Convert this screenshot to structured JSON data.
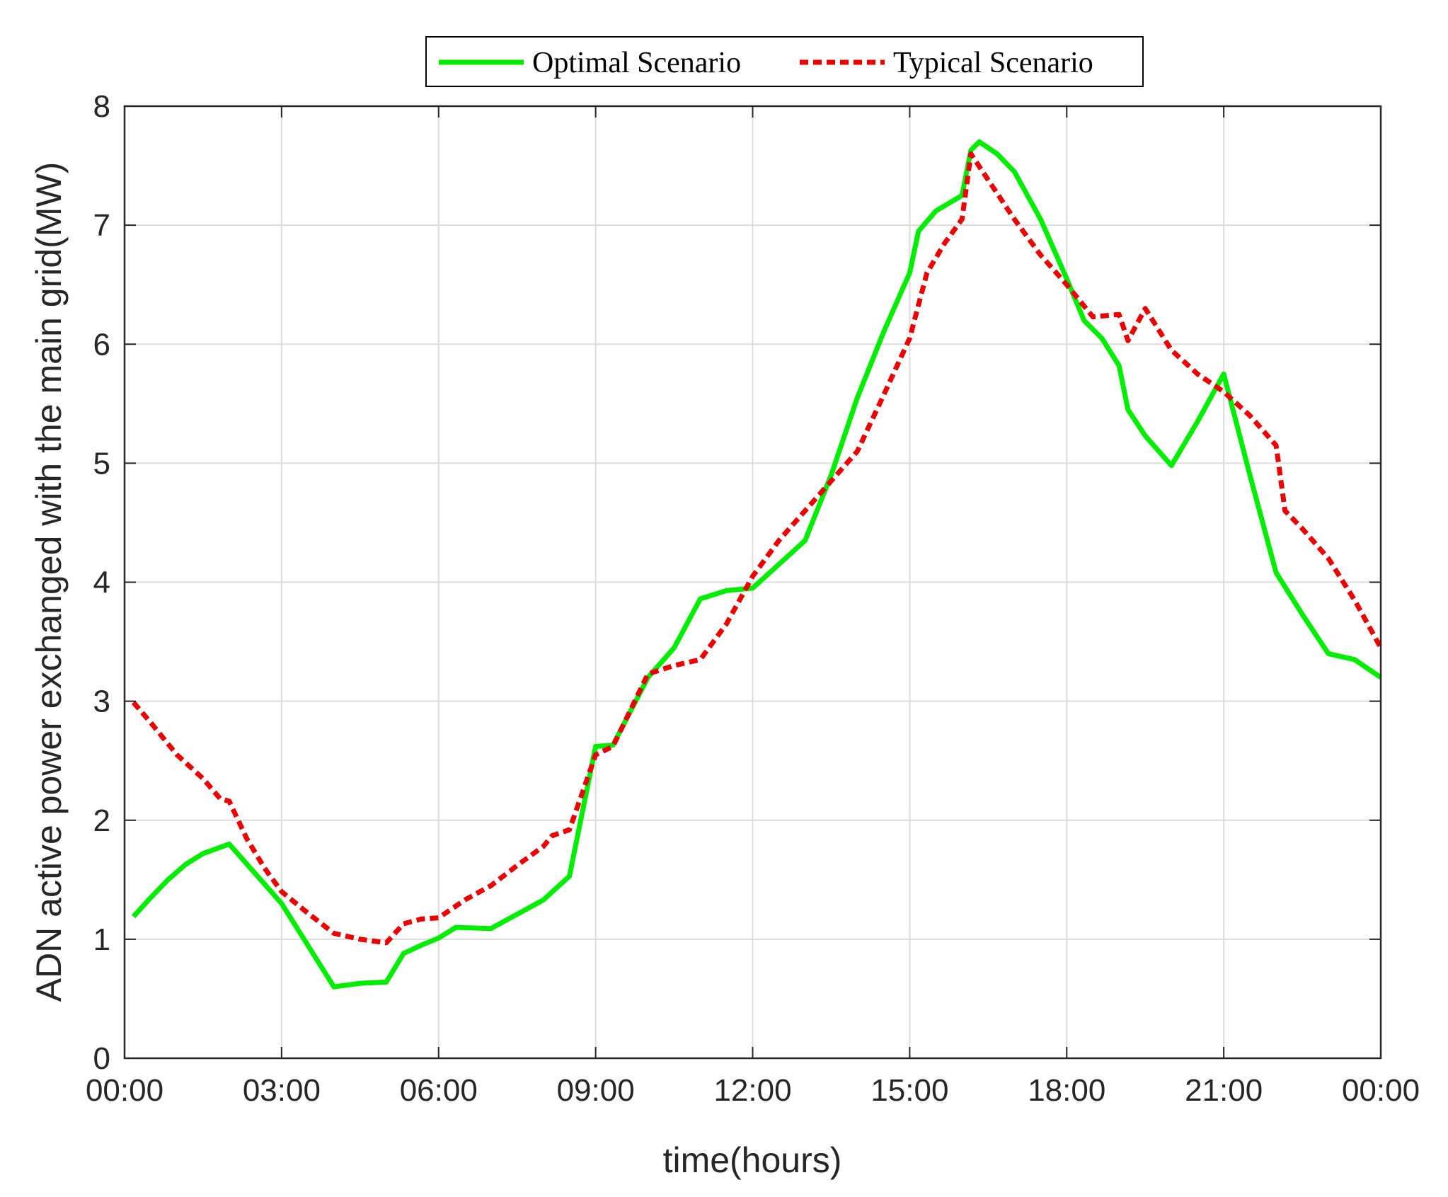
{
  "chart_data": {
    "type": "line",
    "title": "",
    "xlabel": "time(hours)",
    "ylabel": "ADN active power exchanged with the main grid(MW)",
    "xlim": [
      0,
      24
    ],
    "ylim": [
      0,
      8
    ],
    "grid": true,
    "legend_position": "top-center",
    "x_ticks": [
      {
        "value": 0,
        "label": "00:00"
      },
      {
        "value": 3,
        "label": "03:00"
      },
      {
        "value": 6,
        "label": "06:00"
      },
      {
        "value": 9,
        "label": "09:00"
      },
      {
        "value": 12,
        "label": "12:00"
      },
      {
        "value": 15,
        "label": "15:00"
      },
      {
        "value": 18,
        "label": "18:00"
      },
      {
        "value": 21,
        "label": "21:00"
      },
      {
        "value": 24,
        "label": "00:00"
      }
    ],
    "y_ticks": [
      {
        "value": 0,
        "label": "0"
      },
      {
        "value": 1,
        "label": "1"
      },
      {
        "value": 2,
        "label": "2"
      },
      {
        "value": 3,
        "label": "3"
      },
      {
        "value": 4,
        "label": "4"
      },
      {
        "value": 5,
        "label": "5"
      },
      {
        "value": 6,
        "label": "6"
      },
      {
        "value": 7,
        "label": "7"
      },
      {
        "value": 8,
        "label": "8"
      }
    ],
    "series": [
      {
        "name": "Optimal Scenario",
        "color": "#00ee00",
        "dash": "solid",
        "points": [
          [
            0.17,
            1.19
          ],
          [
            0.5,
            1.35
          ],
          [
            0.83,
            1.5
          ],
          [
            1.17,
            1.63
          ],
          [
            1.5,
            1.72
          ],
          [
            2.0,
            1.8
          ],
          [
            2.5,
            1.55
          ],
          [
            3.0,
            1.3
          ],
          [
            3.5,
            0.95
          ],
          [
            4.0,
            0.6
          ],
          [
            4.5,
            0.63
          ],
          [
            5.0,
            0.64
          ],
          [
            5.33,
            0.88
          ],
          [
            5.67,
            0.95
          ],
          [
            6.0,
            1.01
          ],
          [
            6.33,
            1.1
          ],
          [
            7.0,
            1.09
          ],
          [
            7.5,
            1.21
          ],
          [
            8.0,
            1.33
          ],
          [
            8.5,
            1.53
          ],
          [
            9.0,
            2.62
          ],
          [
            9.33,
            2.63
          ],
          [
            10.0,
            3.2
          ],
          [
            10.5,
            3.45
          ],
          [
            11.0,
            3.86
          ],
          [
            11.5,
            3.93
          ],
          [
            12.0,
            3.95
          ],
          [
            12.5,
            4.15
          ],
          [
            13.0,
            4.35
          ],
          [
            13.5,
            4.9
          ],
          [
            14.0,
            5.55
          ],
          [
            14.5,
            6.1
          ],
          [
            15.0,
            6.6
          ],
          [
            15.17,
            6.95
          ],
          [
            15.5,
            7.12
          ],
          [
            16.0,
            7.25
          ],
          [
            16.17,
            7.63
          ],
          [
            16.33,
            7.7
          ],
          [
            16.67,
            7.6
          ],
          [
            17.0,
            7.45
          ],
          [
            17.5,
            7.05
          ],
          [
            18.0,
            6.55
          ],
          [
            18.33,
            6.2
          ],
          [
            18.67,
            6.05
          ],
          [
            19.0,
            5.82
          ],
          [
            19.17,
            5.45
          ],
          [
            19.5,
            5.23
          ],
          [
            20.0,
            4.98
          ],
          [
            20.5,
            5.35
          ],
          [
            21.0,
            5.75
          ],
          [
            21.5,
            4.9
          ],
          [
            22.0,
            4.08
          ],
          [
            22.5,
            3.73
          ],
          [
            23.0,
            3.4
          ],
          [
            23.5,
            3.35
          ],
          [
            24.0,
            3.2
          ]
        ]
      },
      {
        "name": "Typical Scenario",
        "color": "#ee0000",
        "dash": "dashed",
        "points": [
          [
            0.17,
            2.99
          ],
          [
            0.5,
            2.82
          ],
          [
            1.0,
            2.55
          ],
          [
            1.5,
            2.35
          ],
          [
            1.83,
            2.18
          ],
          [
            2.0,
            2.16
          ],
          [
            2.33,
            1.85
          ],
          [
            2.67,
            1.6
          ],
          [
            3.0,
            1.4
          ],
          [
            3.5,
            1.22
          ],
          [
            4.0,
            1.05
          ],
          [
            4.5,
            1.0
          ],
          [
            5.0,
            0.97
          ],
          [
            5.33,
            1.13
          ],
          [
            5.67,
            1.17
          ],
          [
            6.0,
            1.18
          ],
          [
            6.5,
            1.33
          ],
          [
            7.0,
            1.45
          ],
          [
            7.5,
            1.62
          ],
          [
            8.0,
            1.78
          ],
          [
            8.17,
            1.87
          ],
          [
            8.5,
            1.92
          ],
          [
            9.0,
            2.55
          ],
          [
            9.33,
            2.62
          ],
          [
            10.0,
            3.23
          ],
          [
            10.5,
            3.3
          ],
          [
            11.0,
            3.35
          ],
          [
            11.5,
            3.65
          ],
          [
            12.0,
            4.05
          ],
          [
            12.5,
            4.35
          ],
          [
            13.0,
            4.6
          ],
          [
            13.5,
            4.85
          ],
          [
            14.0,
            5.1
          ],
          [
            14.5,
            5.57
          ],
          [
            15.0,
            6.05
          ],
          [
            15.33,
            6.6
          ],
          [
            15.67,
            6.85
          ],
          [
            16.0,
            7.05
          ],
          [
            16.17,
            7.6
          ],
          [
            16.5,
            7.38
          ],
          [
            17.0,
            7.05
          ],
          [
            17.5,
            6.75
          ],
          [
            18.0,
            6.5
          ],
          [
            18.5,
            6.23
          ],
          [
            19.0,
            6.25
          ],
          [
            19.17,
            6.03
          ],
          [
            19.5,
            6.3
          ],
          [
            20.0,
            5.95
          ],
          [
            20.5,
            5.75
          ],
          [
            21.0,
            5.6
          ],
          [
            21.5,
            5.4
          ],
          [
            22.0,
            5.15
          ],
          [
            22.17,
            4.6
          ],
          [
            22.5,
            4.45
          ],
          [
            23.0,
            4.2
          ],
          [
            23.5,
            3.85
          ],
          [
            24.0,
            3.45
          ]
        ]
      }
    ]
  }
}
